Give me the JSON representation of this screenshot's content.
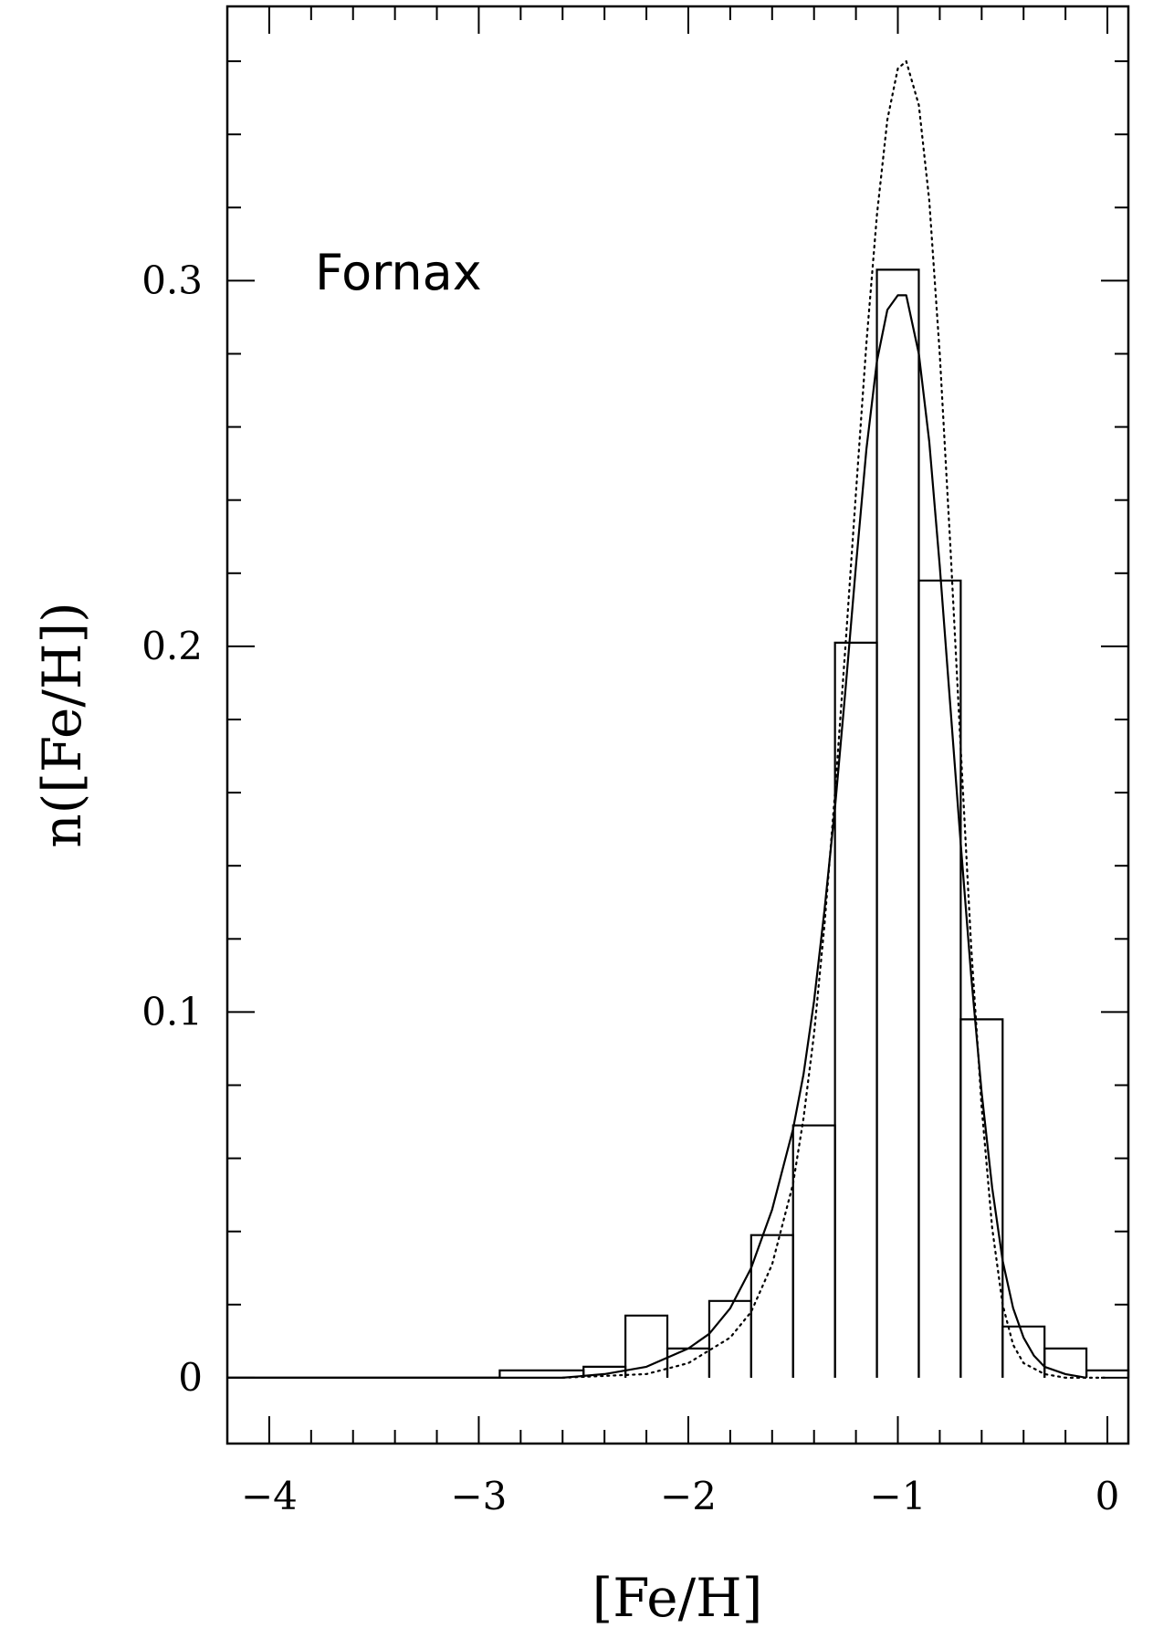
{
  "chart_data": {
    "type": "line",
    "xlabel": "[Fe/H]",
    "ylabel": "n([Fe/H])",
    "xlim": [
      -4.2,
      0.1
    ],
    "ylim": [
      -0.018,
      0.375
    ],
    "x_major_ticks": [
      -4,
      -3,
      -2,
      -1,
      0
    ],
    "x_tick_labels": [
      "−4",
      "−3",
      "−2",
      "−1",
      "0"
    ],
    "x_minor_step": 0.2,
    "y_major_ticks": [
      0,
      0.1,
      0.2,
      0.3
    ],
    "y_tick_labels": [
      "0",
      "0.1",
      "0.2",
      "0.3"
    ],
    "y_minor_step": 0.02,
    "grid": false,
    "legend": "none",
    "annotations": [
      "Fornax"
    ],
    "histogram": {
      "bin_edges": [
        -2.9,
        -2.5,
        -2.3,
        -2.1,
        -1.9,
        -1.7,
        -1.5,
        -1.3,
        -1.1,
        -0.9,
        -0.7,
        -0.5,
        -0.3,
        -0.1,
        0.1
      ],
      "values": [
        0.002,
        0.003,
        0.017,
        0.008,
        0.021,
        0.039,
        0.069,
        0.201,
        0.303,
        0.218,
        0.098,
        0.014,
        0.008,
        0.002
      ]
    },
    "series": [
      {
        "style": "solid",
        "color": "#000000",
        "x": [
          -4.2,
          -2.6,
          -2.4,
          -2.2,
          -2.0,
          -1.9,
          -1.8,
          -1.7,
          -1.6,
          -1.5,
          -1.45,
          -1.4,
          -1.35,
          -1.3,
          -1.25,
          -1.2,
          -1.15,
          -1.1,
          -1.05,
          -1.0,
          -0.96,
          -0.9,
          -0.85,
          -0.8,
          -0.75,
          -0.7,
          -0.65,
          -0.6,
          -0.55,
          -0.5,
          -0.45,
          -0.4,
          -0.35,
          -0.3,
          -0.25,
          -0.2,
          -0.1
        ],
        "y": [
          0.0,
          0.0,
          0.001,
          0.003,
          0.008,
          0.012,
          0.019,
          0.03,
          0.046,
          0.068,
          0.083,
          0.103,
          0.128,
          0.156,
          0.188,
          0.222,
          0.254,
          0.278,
          0.292,
          0.296,
          0.296,
          0.28,
          0.256,
          0.222,
          0.184,
          0.146,
          0.11,
          0.078,
          0.052,
          0.032,
          0.019,
          0.011,
          0.006,
          0.003,
          0.002,
          0.001,
          0.0
        ]
      },
      {
        "style": "dotted",
        "color": "#000000",
        "x": [
          -2.6,
          -2.2,
          -2.0,
          -1.8,
          -1.7,
          -1.6,
          -1.5,
          -1.45,
          -1.4,
          -1.35,
          -1.3,
          -1.25,
          -1.2,
          -1.15,
          -1.1,
          -1.05,
          -1.0,
          -0.96,
          -0.9,
          -0.85,
          -0.8,
          -0.75,
          -0.7,
          -0.65,
          -0.6,
          -0.55,
          -0.5,
          -0.45,
          -0.4,
          -0.3,
          -0.2,
          -0.1,
          0.0
        ],
        "y": [
          0.0,
          0.001,
          0.004,
          0.011,
          0.018,
          0.031,
          0.053,
          0.071,
          0.094,
          0.124,
          0.16,
          0.2,
          0.242,
          0.283,
          0.318,
          0.344,
          0.358,
          0.36,
          0.348,
          0.322,
          0.28,
          0.228,
          0.172,
          0.118,
          0.074,
          0.041,
          0.02,
          0.009,
          0.004,
          0.001,
          0.0,
          0.0,
          0.0
        ]
      }
    ]
  }
}
